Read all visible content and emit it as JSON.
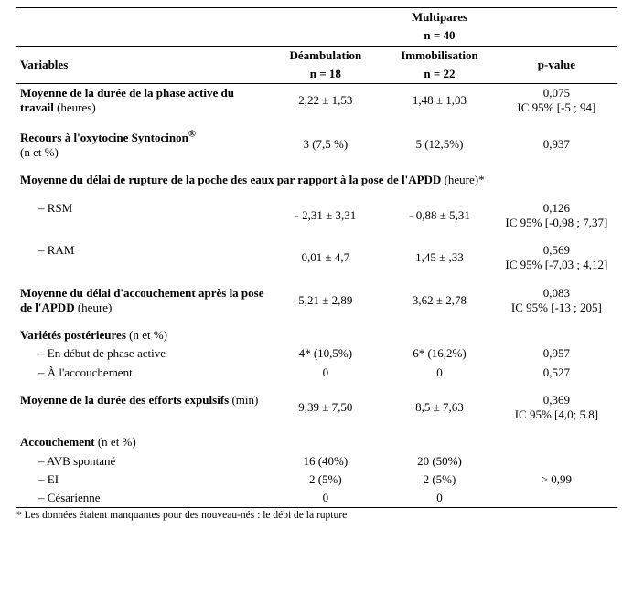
{
  "header": {
    "group_title": "Multipares",
    "group_n": "n = 40",
    "col_variables": "Variables",
    "col_deamb": "Déambulation",
    "col_deamb_n": "n = 18",
    "col_immob": "Immobilisation",
    "col_immob_n": "n = 22",
    "col_pvalue": "p-value"
  },
  "rows": {
    "r1": {
      "label_strong": "Moyenne de la durée de la phase active du travail",
      "label_rest": " (heures)",
      "deamb": "2,22 ± 1,53",
      "immob": "1,48 ± 1,03",
      "p1": "0,075",
      "p2": "IC 95% [-5 ; 94]"
    },
    "r2": {
      "label_strong": "Recours à l'oxytocine Syntocinon",
      "sup": "®",
      "label_line2": "(n et %)",
      "deamb": "3 (7,5 %)",
      "immob": "5 (12,5%)",
      "p": "0,937"
    },
    "r3": {
      "label_strong": "Moyenne du délai de rupture de la poche des eaux par rapport à la pose de l'APDD",
      "label_rest": " (heure)*",
      "sub_rsm": "RSM",
      "rsm_deamb": "- 2,31 ± 3,31",
      "rsm_immob": "- 0,88 ± 5,31",
      "rsm_p1": "0,126",
      "rsm_p2": "IC 95% [-0,98 ; 7,37]",
      "sub_ram": "RAM",
      "ram_deamb": "0,01 ± 4,7",
      "ram_immob": "1,45 ± ,33",
      "ram_p1": "0,569",
      "ram_p2": "IC 95% [-7,03 ; 4,12]"
    },
    "r4": {
      "label_strong": "Moyenne du délai d'accouchement après la pose de l'APDD",
      "label_rest": " (heure)",
      "deamb": "5,21 ± 2,89",
      "immob": "3,62 ± 2,78",
      "p1": "0,083",
      "p2": "IC 95% [-13 ; 205]"
    },
    "r5": {
      "label_strong": "Variétés postérieures",
      "label_rest": " (n et %)",
      "sub_a": "En début de phase active",
      "a_deamb": "4* (10,5%)",
      "a_immob": "6* (16,2%)",
      "a_p": "0,957",
      "sub_b": "À l'accouchement",
      "b_deamb": "0",
      "b_immob": "0",
      "b_p": "0,527"
    },
    "r6": {
      "label_strong": "Moyenne de la durée des efforts expulsifs",
      "label_rest": " (min)",
      "deamb": "9,39 ± 7,50",
      "immob": "8,5 ± 7,63",
      "p1": "0,369",
      "p2": "IC 95% [4,0; 5.8]"
    },
    "r7": {
      "label_strong": "Accouchement",
      "label_rest": " (n et %)",
      "sub_a": "AVB spontané",
      "a_deamb": "16 (40%)",
      "a_immob": "20 (50%)",
      "sub_b": "EI",
      "b_deamb": "2 (5%)",
      "b_immob": "2 (5%)",
      "sub_c": "Césarienne",
      "c_deamb": "0",
      "c_immob": "0",
      "p": "> 0,99"
    }
  },
  "footnote": "* Les données étaient manquantes pour des nouveau-nés : le déb​i de la rupture"
}
